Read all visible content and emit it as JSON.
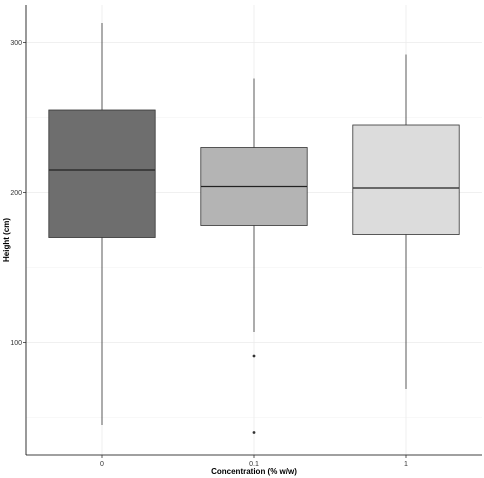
{
  "chart_data": {
    "type": "boxplot",
    "title": "",
    "xlabel": "Concentration (% w/w)",
    "ylabel": "Height (cm)",
    "ylim": [
      25,
      325
    ],
    "yticks": [
      100,
      200,
      300
    ],
    "grid": true,
    "legend": "none",
    "categories": [
      "0",
      "0.1",
      "1"
    ],
    "boxes": [
      {
        "category": "0",
        "min": 45,
        "q1": 170,
        "median": 215,
        "q3": 255,
        "max": 313,
        "outliers": [],
        "color": "#6e6e6e"
      },
      {
        "category": "0.1",
        "min": 107,
        "q1": 178,
        "median": 204,
        "q3": 230,
        "max": 276,
        "outliers": [
          91,
          40
        ],
        "color": "#b4b4b4"
      },
      {
        "category": "1",
        "min": 69,
        "q1": 172,
        "median": 203,
        "q3": 245,
        "max": 292,
        "outliers": [],
        "color": "#dcdcdc"
      }
    ]
  }
}
